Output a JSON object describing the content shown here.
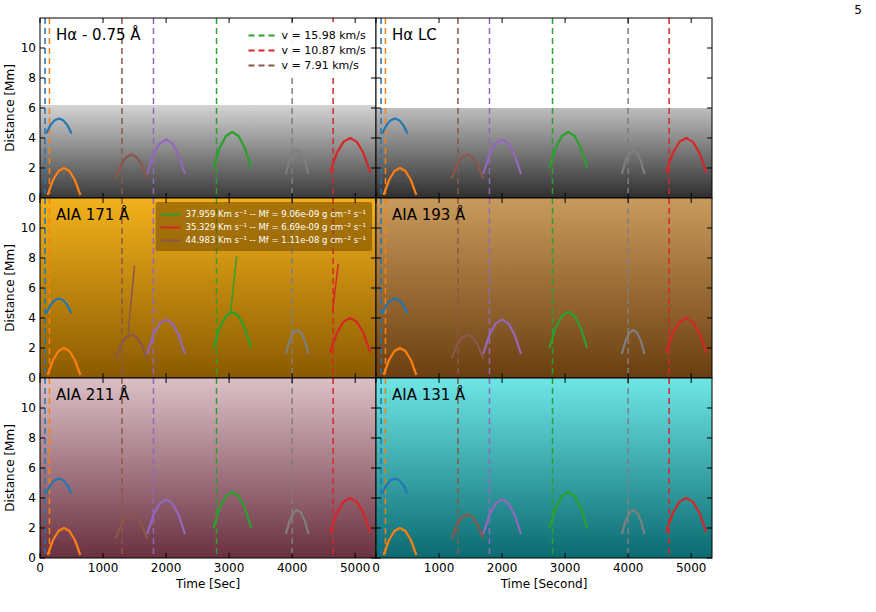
{
  "chart_data": {
    "type": "image",
    "page_number": "5",
    "xlim": [
      0,
      5330
    ],
    "ylim": [
      0,
      12
    ],
    "xticks": [
      0,
      1000,
      2000,
      3000,
      4000,
      5000
    ],
    "yticks": [
      0,
      2,
      4,
      6,
      8,
      10
    ],
    "vlines": [
      {
        "color": "#1f77b4",
        "x": 80,
        "line_style": "dashed"
      },
      {
        "color": "#ff7f0e",
        "x": 150,
        "line_style": "dashed"
      },
      {
        "color": "#8c564b",
        "x": 1300,
        "line_style": "dashed"
      },
      {
        "color": "#9467bd",
        "x": 1800,
        "line_style": "dashed"
      },
      {
        "color": "#2ca02c",
        "x": 2800,
        "line_style": "dashed"
      },
      {
        "color": "#7f7f7f",
        "x": 4000,
        "line_style": "dashed"
      },
      {
        "color": "#d62728",
        "x": 4650,
        "line_style": "dashed"
      }
    ],
    "arcs": [
      {
        "color": "#1f77b4",
        "x": [
          100,
          167,
          233,
          300,
          367,
          433,
          500
        ],
        "y": [
          4.3,
          4.86,
          5.19,
          5.3,
          5.19,
          4.86,
          4.3
        ]
      },
      {
        "color": "#ff7f0e",
        "x": [
          120,
          207,
          293,
          380,
          467,
          553,
          640
        ],
        "y": [
          0.2,
          1.2,
          1.8,
          2.0,
          1.8,
          1.2,
          0.2
        ]
      },
      {
        "color": "#8c564b",
        "x": [
          1200,
          1283,
          1367,
          1450,
          1533,
          1617,
          1700
        ],
        "y": [
          1.3,
          2.19,
          2.72,
          2.9,
          2.72,
          2.19,
          1.3
        ]
      },
      {
        "color": "#9467bd",
        "x": [
          1700,
          1800,
          1900,
          2000,
          2100,
          2200,
          2300
        ],
        "y": [
          1.6,
          2.88,
          3.64,
          3.9,
          3.64,
          2.88,
          1.6
        ]
      },
      {
        "color": "#2ca02c",
        "x": [
          2750,
          2850,
          2950,
          3050,
          3150,
          3250,
          3350
        ],
        "y": [
          2.0,
          3.33,
          4.13,
          4.4,
          4.13,
          3.33,
          2.0
        ]
      },
      {
        "color": "#7f7f7f",
        "x": [
          3900,
          3960,
          4020,
          4080,
          4140,
          4200,
          4260
        ],
        "y": [
          1.6,
          2.49,
          3.02,
          3.2,
          3.02,
          2.49,
          1.6
        ]
      },
      {
        "color": "#d62728",
        "x": [
          4600,
          4707,
          4813,
          4920,
          5027,
          5133,
          5240
        ],
        "y": [
          1.7,
          2.98,
          3.74,
          4.0,
          3.74,
          2.98,
          1.7
        ]
      }
    ],
    "panels": [
      {
        "title": "Hα - 0.75 Å",
        "colors": [
          "#d4d4d4",
          "#3a3a3a"
        ],
        "image_top": 6.2,
        "y_label": "Distance [Mm]",
        "tick_labels": "y",
        "legend": "upper right",
        "legend_items": [
          {
            "name": "v = 15.98 km/s",
            "color": "#2ca02c",
            "line_style": "dashed"
          },
          {
            "name": "v = 10.87 km/s",
            "color": "#d62728",
            "line_style": "dashed"
          },
          {
            "name": "v = 7.91 km/s",
            "color": "#8c564b",
            "line_style": "dashed"
          }
        ]
      },
      {
        "title": "Hα LC",
        "colors": [
          "#bdbdbd",
          "#2e2e2e"
        ],
        "image_top": 6.0,
        "tick_labels": false
      },
      {
        "title": "AIA 171 Å",
        "colors": [
          "#f3b21c",
          "#8a5a00"
        ],
        "y_label": "Distance [Mm]",
        "tick_labels": "y",
        "legend": "upper right",
        "fit_lines": [
          {
            "name": "37.959 Km s⁻¹ -- Mf = 9.06e-09 g cm⁻² s⁻¹",
            "color": "#2ca02c",
            "x": [
              3020,
              3120
            ],
            "y": [
              4.3,
              8.1
            ]
          },
          {
            "name": "35.329 Km s⁻¹ -- Mf = 6.69e-09 g cm⁻² s⁻¹",
            "color": "#d62728",
            "x": [
              4640,
              4730
            ],
            "y": [
              4.4,
              7.6
            ]
          },
          {
            "name": "44.983 Km s⁻¹ -- Mf = 1.11e-08 g cm⁻² s⁻¹",
            "color": "#8c564b",
            "x": [
              1400,
              1500
            ],
            "y": [
              3.0,
              7.5
            ]
          }
        ]
      },
      {
        "title": "AIA 193 Å",
        "colors": [
          "#c99a5c",
          "#6a3e10"
        ],
        "tick_labels": false
      },
      {
        "title": "AIA 211 Å",
        "colors": [
          "#dcc0c6",
          "#6a3040"
        ],
        "y_label": "Distance [Mm]",
        "x_label": "Time [Sec]",
        "tick_labels": true
      },
      {
        "title": "AIA 131 Å",
        "colors": [
          "#6fe6e6",
          "#0a6a70"
        ],
        "x_label": "Time [Second]",
        "tick_labels": "x"
      }
    ]
  }
}
